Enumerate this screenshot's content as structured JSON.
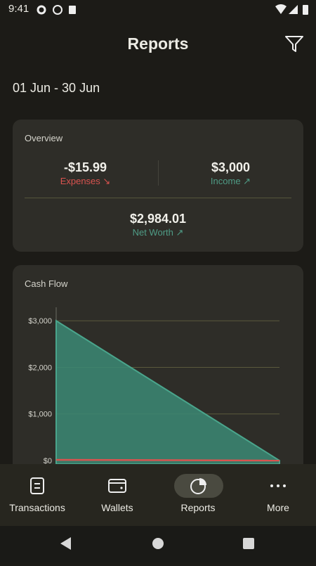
{
  "status_bar": {
    "time": "9:41"
  },
  "header": {
    "title": "Reports"
  },
  "date_range": "01 Jun - 30 Jun",
  "overview": {
    "title": "Overview",
    "expenses": {
      "value": "-$15.99",
      "label": "Expenses"
    },
    "income": {
      "value": "$3,000",
      "label": "Income"
    },
    "net_worth": {
      "value": "$2,984.01",
      "label": "Net Worth"
    }
  },
  "chart_data": {
    "type": "area",
    "title": "Cash Flow",
    "categories": [
      null,
      null
    ],
    "series": [
      {
        "color": "#3b8a74",
        "values": [
          3000,
          0
        ]
      },
      {
        "color": "#d9534f",
        "values": [
          16,
          0
        ]
      }
    ],
    "ylim": [
      0,
      3290
    ],
    "yticks": [
      {
        "value": 0,
        "label": "$0"
      },
      {
        "value": 1000,
        "label": "$1,000"
      },
      {
        "value": 2000,
        "label": "$2,000"
      },
      {
        "value": 3000,
        "label": "$3,000"
      }
    ],
    "grid": true
  },
  "nav": {
    "items": [
      "Transactions",
      "Wallets",
      "Reports",
      "More"
    ],
    "active": 2
  }
}
